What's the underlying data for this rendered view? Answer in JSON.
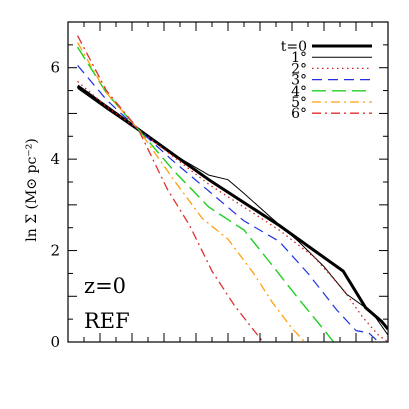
{
  "chart_data": {
    "type": "line",
    "ylabel": "ln Σ (M⊙ pc⁻²)",
    "ylim": [
      0,
      7
    ],
    "xlim": [
      0,
      1
    ],
    "yticks": [
      0,
      2,
      4,
      6
    ],
    "grid": false,
    "legend_position": "top-right",
    "annotations": [
      "z=0",
      "REF"
    ],
    "series": [
      {
        "name": "t=0",
        "color": "#000000",
        "dash": "solid",
        "width": 3.0,
        "points": [
          [
            0.03,
            5.6
          ],
          [
            0.12,
            5.15
          ],
          [
            0.22,
            4.65
          ],
          [
            0.33,
            4.1
          ],
          [
            0.44,
            3.55
          ],
          [
            0.55,
            3.05
          ],
          [
            0.66,
            2.55
          ],
          [
            0.77,
            2.0
          ],
          [
            0.86,
            1.55
          ],
          [
            0.93,
            0.75
          ],
          [
            0.98,
            0.45
          ],
          [
            1.0,
            0.28
          ]
        ]
      },
      {
        "name": "1°",
        "color": "#000000",
        "dash": "solid",
        "width": 1.0,
        "points": [
          [
            0.03,
            5.55
          ],
          [
            0.12,
            5.1
          ],
          [
            0.22,
            4.62
          ],
          [
            0.33,
            4.1
          ],
          [
            0.44,
            3.65
          ],
          [
            0.5,
            3.55
          ],
          [
            0.55,
            3.25
          ],
          [
            0.63,
            2.75
          ],
          [
            0.72,
            2.2
          ],
          [
            0.8,
            1.65
          ],
          [
            0.87,
            1.05
          ],
          [
            0.95,
            0.65
          ],
          [
            1.0,
            0.15
          ]
        ]
      },
      {
        "name": "2°",
        "color": "#d22020",
        "dash": "1.5 3.5",
        "width": 1.3,
        "points": [
          [
            0.03,
            5.7
          ],
          [
            0.12,
            5.15
          ],
          [
            0.22,
            4.65
          ],
          [
            0.33,
            4.05
          ],
          [
            0.44,
            3.45
          ],
          [
            0.55,
            2.95
          ],
          [
            0.66,
            2.45
          ],
          [
            0.77,
            1.85
          ],
          [
            0.86,
            1.15
          ],
          [
            0.92,
            0.55
          ],
          [
            0.97,
            0.15
          ],
          [
            1.0,
            0.0
          ]
        ]
      },
      {
        "name": "3°",
        "color": "#2030e0",
        "dash": "10 6",
        "width": 1.2,
        "points": [
          [
            0.03,
            6.05
          ],
          [
            0.12,
            5.3
          ],
          [
            0.22,
            4.65
          ],
          [
            0.33,
            3.95
          ],
          [
            0.44,
            3.3
          ],
          [
            0.55,
            2.65
          ],
          [
            0.66,
            2.2
          ],
          [
            0.75,
            1.5
          ],
          [
            0.84,
            0.7
          ],
          [
            0.9,
            0.25
          ],
          [
            0.94,
            0.2
          ],
          [
            0.97,
            0.0
          ]
        ]
      },
      {
        "name": "4°",
        "color": "#20d020",
        "dash": "14 6",
        "width": 1.4,
        "points": [
          [
            0.03,
            6.45
          ],
          [
            0.12,
            5.45
          ],
          [
            0.22,
            4.65
          ],
          [
            0.33,
            3.75
          ],
          [
            0.44,
            2.95
          ],
          [
            0.55,
            2.45
          ],
          [
            0.63,
            1.75
          ],
          [
            0.72,
            0.95
          ],
          [
            0.79,
            0.35
          ],
          [
            0.83,
            0.0
          ]
        ]
      },
      {
        "name": "5°",
        "color": "#ffa010",
        "dash": "9 4 2 4",
        "width": 1.3,
        "points": [
          [
            0.03,
            6.55
          ],
          [
            0.12,
            5.45
          ],
          [
            0.22,
            4.65
          ],
          [
            0.33,
            3.55
          ],
          [
            0.42,
            2.7
          ],
          [
            0.5,
            2.25
          ],
          [
            0.58,
            1.5
          ],
          [
            0.64,
            0.85
          ],
          [
            0.7,
            0.3
          ],
          [
            0.74,
            0.0
          ]
        ]
      },
      {
        "name": "6°",
        "color": "#e03030",
        "dash": "9 4 2 4",
        "width": 1.3,
        "points": [
          [
            0.03,
            6.7
          ],
          [
            0.12,
            5.5
          ],
          [
            0.22,
            4.65
          ],
          [
            0.31,
            3.35
          ],
          [
            0.38,
            2.55
          ],
          [
            0.45,
            1.55
          ],
          [
            0.52,
            0.8
          ],
          [
            0.57,
            0.35
          ],
          [
            0.61,
            0.0
          ]
        ]
      }
    ]
  }
}
